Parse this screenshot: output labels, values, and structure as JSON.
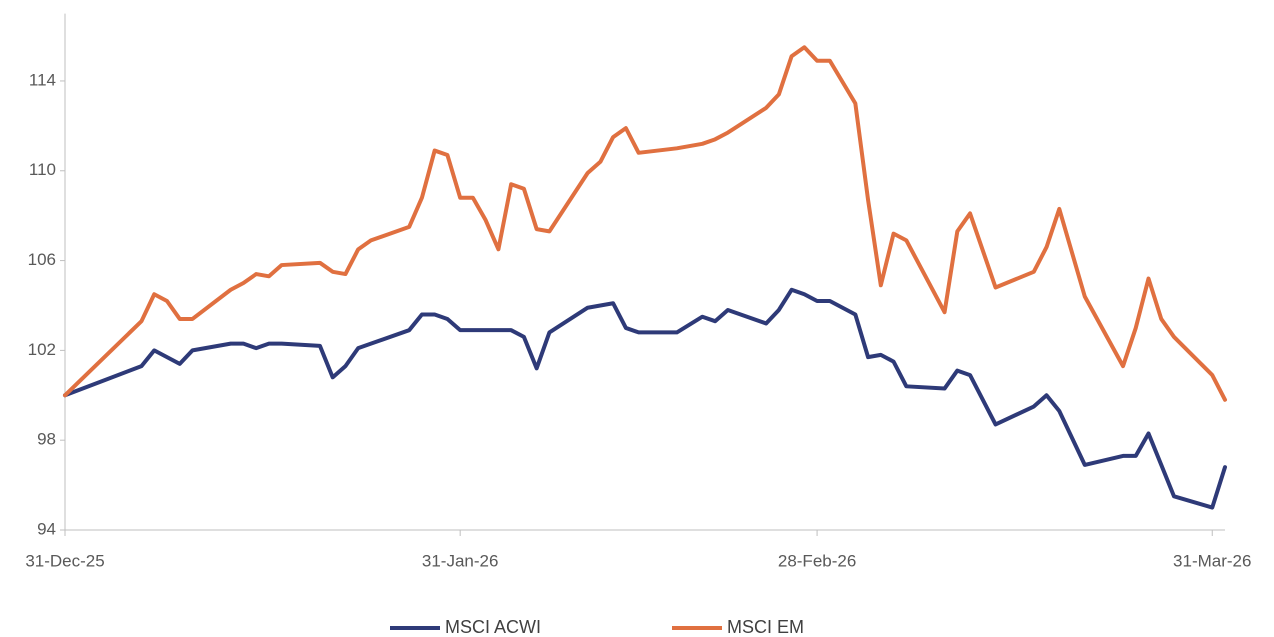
{
  "chart_data": {
    "type": "line",
    "x": [
      "2025-12-31",
      "2026-01-06",
      "2026-01-07",
      "2026-01-08",
      "2026-01-09",
      "2026-01-10",
      "2026-01-13",
      "2026-01-14",
      "2026-01-15",
      "2026-01-16",
      "2026-01-17",
      "2026-01-20",
      "2026-01-21",
      "2026-01-22",
      "2026-01-23",
      "2026-01-24",
      "2026-01-27",
      "2026-01-28",
      "2026-01-29",
      "2026-01-30",
      "2026-01-31",
      "2026-02-01",
      "2026-02-02",
      "2026-02-03",
      "2026-02-04",
      "2026-02-05",
      "2026-02-06",
      "2026-02-07",
      "2026-02-10",
      "2026-02-11",
      "2026-02-12",
      "2026-02-13",
      "2026-02-14",
      "2026-02-17",
      "2026-02-19",
      "2026-02-20",
      "2026-02-21",
      "2026-02-24",
      "2026-02-25",
      "2026-02-26",
      "2026-02-27",
      "2026-02-28",
      "2026-03-01",
      "2026-03-03",
      "2026-03-04",
      "2026-03-05",
      "2026-03-06",
      "2026-03-07",
      "2026-03-10",
      "2026-03-11",
      "2026-03-12",
      "2026-03-14",
      "2026-03-17",
      "2026-03-18",
      "2026-03-19",
      "2026-03-21",
      "2026-03-24",
      "2026-03-25",
      "2026-03-26",
      "2026-03-27",
      "2026-03-28",
      "2026-03-31",
      "2026-04-01"
    ],
    "series": [
      {
        "name": "MSCI ACWI",
        "color": "#2e3a78",
        "values": [
          100,
          101.3,
          102.0,
          101.7,
          101.4,
          102.0,
          102.3,
          102.3,
          102.1,
          102.3,
          102.3,
          102.2,
          100.8,
          101.3,
          102.1,
          102.3,
          102.9,
          103.6,
          103.6,
          103.4,
          102.9,
          102.9,
          102.9,
          102.9,
          102.9,
          102.6,
          101.2,
          102.8,
          103.9,
          104.0,
          104.1,
          103.0,
          102.8,
          102.8,
          103.5,
          103.3,
          103.8,
          103.2,
          103.8,
          104.7,
          104.5,
          104.2,
          104.2,
          103.6,
          101.7,
          101.8,
          101.5,
          100.4,
          100.3,
          101.1,
          100.9,
          98.7,
          99.5,
          100.0,
          99.3,
          96.9,
          97.3,
          97.3,
          98.3,
          96.9,
          95.5,
          95.0,
          96.8
        ]
      },
      {
        "name": "MSCI EM",
        "color": "#e07040",
        "values": [
          100,
          103.3,
          104.5,
          104.2,
          103.4,
          103.4,
          104.7,
          105.0,
          105.4,
          105.3,
          105.8,
          105.9,
          105.5,
          105.4,
          106.5,
          106.9,
          107.5,
          108.8,
          110.9,
          110.7,
          108.8,
          108.8,
          107.8,
          106.5,
          109.4,
          109.2,
          107.4,
          107.3,
          109.9,
          110.4,
          111.5,
          111.9,
          110.8,
          111.0,
          111.2,
          111.4,
          111.7,
          112.8,
          113.4,
          115.1,
          115.5,
          114.9,
          114.9,
          113.0,
          108.7,
          104.9,
          107.2,
          106.9,
          103.7,
          107.3,
          108.1,
          104.8,
          105.5,
          106.6,
          108.3,
          104.4,
          101.3,
          103.0,
          105.2,
          103.4,
          102.6,
          100.9,
          99.8
        ]
      }
    ],
    "xlim": [
      "2025-12-31",
      "2026-04-01"
    ],
    "xticks": [
      {
        "value": "2025-12-31",
        "label": "31-Dec-25"
      },
      {
        "value": "2026-01-31",
        "label": "31-Jan-26"
      },
      {
        "value": "2026-02-28",
        "label": "28-Feb-26"
      },
      {
        "value": "2026-03-31",
        "label": "31-Mar-26"
      }
    ],
    "ylim": [
      94,
      117
    ],
    "yticks": [
      94,
      98,
      102,
      106,
      110,
      114
    ],
    "grid": false,
    "legend": "bottom"
  }
}
